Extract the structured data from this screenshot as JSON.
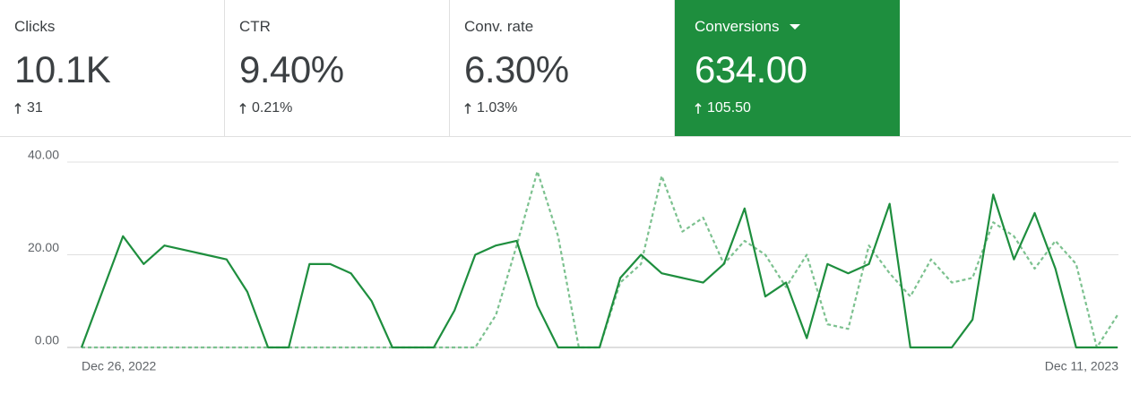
{
  "cards": [
    {
      "label": "Clicks",
      "value": "10.1K",
      "change": "31"
    },
    {
      "label": "CTR",
      "value": "9.40%",
      "change": "0.21%"
    },
    {
      "label": "Conv. rate",
      "value": "6.30%",
      "change": "1.03%"
    },
    {
      "label": "Conversions",
      "value": "634.00",
      "change": "105.50"
    }
  ],
  "chart_data": {
    "type": "line",
    "categories": [
      "Dec 26, 2022",
      null,
      null,
      null,
      null,
      null,
      null,
      null,
      null,
      null,
      null,
      null,
      null,
      null,
      null,
      null,
      null,
      null,
      null,
      null,
      null,
      null,
      null,
      null,
      null,
      null,
      null,
      null,
      null,
      null,
      null,
      null,
      null,
      null,
      null,
      null,
      null,
      null,
      null,
      null,
      null,
      null,
      null,
      null,
      null,
      null,
      null,
      null,
      null,
      null,
      "Dec 11, 2023"
    ],
    "series": [
      {
        "color": "#1e8e3e",
        "dash": false,
        "values": [
          0,
          12,
          24,
          18,
          22,
          21,
          20,
          19,
          12,
          0,
          0,
          18,
          18,
          16,
          10,
          0,
          0,
          0,
          8,
          20,
          22,
          23,
          9,
          0,
          0,
          0,
          15,
          20,
          16,
          15,
          14,
          18,
          30,
          11,
          14,
          2,
          18,
          16,
          18,
          31,
          0,
          0,
          0,
          6,
          33,
          19,
          29,
          17,
          0,
          0,
          0
        ]
      },
      {
        "color": "#7cc18f",
        "dash": true,
        "values": [
          0,
          0,
          0,
          0,
          0,
          0,
          0,
          0,
          0,
          0,
          0,
          0,
          0,
          0,
          0,
          0,
          0,
          0,
          0,
          0,
          7,
          22,
          38,
          24,
          0,
          0,
          14,
          18,
          37,
          25,
          28,
          18,
          23,
          20,
          13,
          20,
          5,
          4,
          22,
          16,
          11,
          19,
          14,
          15,
          27,
          24,
          17,
          23,
          18,
          0,
          7
        ]
      }
    ],
    "ylim": [
      0,
      40
    ],
    "yticks": [
      {
        "value": 0,
        "label": "0.00"
      },
      {
        "value": 20,
        "label": "20.00"
      },
      {
        "value": 40,
        "label": "40.00"
      }
    ],
    "grid": true
  }
}
